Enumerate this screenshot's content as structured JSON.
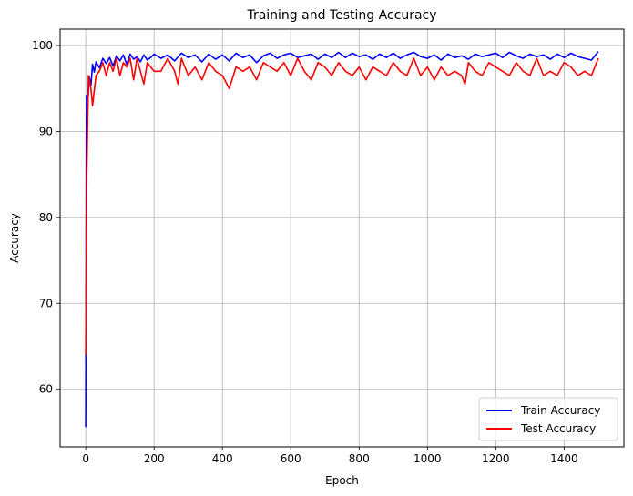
{
  "chart_data": {
    "type": "line",
    "title": "Training and Testing Accuracy",
    "xlabel": "Epoch",
    "ylabel": "Accuracy",
    "xlim": [
      -75,
      1575
    ],
    "ylim": [
      53.3,
      101.9
    ],
    "xticks": [
      0,
      200,
      400,
      600,
      800,
      1000,
      1200,
      1400
    ],
    "yticks": [
      60,
      70,
      80,
      90,
      100
    ],
    "grid": true,
    "legend_position": "lower-right",
    "series": [
      {
        "name": "Train Accuracy",
        "color": "#0000ff",
        "x": [
          0,
          2,
          5,
          10,
          15,
          20,
          25,
          30,
          40,
          50,
          60,
          70,
          80,
          90,
          100,
          110,
          120,
          130,
          140,
          150,
          160,
          170,
          180,
          190,
          200,
          220,
          240,
          260,
          280,
          300,
          320,
          340,
          360,
          380,
          400,
          420,
          440,
          460,
          480,
          500,
          520,
          540,
          560,
          580,
          600,
          620,
          640,
          660,
          680,
          700,
          720,
          740,
          760,
          780,
          800,
          820,
          840,
          860,
          880,
          900,
          920,
          940,
          960,
          980,
          1000,
          1020,
          1040,
          1060,
          1080,
          1100,
          1120,
          1140,
          1160,
          1180,
          1200,
          1220,
          1240,
          1260,
          1280,
          1300,
          1320,
          1340,
          1360,
          1380,
          1400,
          1420,
          1440,
          1460,
          1480,
          1500
        ],
        "y": [
          55.6,
          94.2,
          92.1,
          96.4,
          95.3,
          97.8,
          96.9,
          98.1,
          97.4,
          98.5,
          97.9,
          98.6,
          97.6,
          98.8,
          98.2,
          98.9,
          97.8,
          99.0,
          98.4,
          98.7,
          98.1,
          98.9,
          98.3,
          98.6,
          99.0,
          98.5,
          98.9,
          98.2,
          99.1,
          98.6,
          98.9,
          98.1,
          99.0,
          98.4,
          98.9,
          98.2,
          99.1,
          98.6,
          98.9,
          98.0,
          98.8,
          99.1,
          98.5,
          98.9,
          99.1,
          98.6,
          98.8,
          99.0,
          98.4,
          99.0,
          98.6,
          99.2,
          98.6,
          99.1,
          98.7,
          98.9,
          98.4,
          99.0,
          98.6,
          99.1,
          98.5,
          98.9,
          99.2,
          98.7,
          98.5,
          98.9,
          98.3,
          99.0,
          98.6,
          98.8,
          98.4,
          99.0,
          98.7,
          98.9,
          99.1,
          98.6,
          99.2,
          98.8,
          98.5,
          99.0,
          98.7,
          98.9,
          98.4,
          99.0,
          98.6,
          99.1,
          98.7,
          98.5,
          98.3,
          99.3
        ]
      },
      {
        "name": "Test Accuracy",
        "color": "#ff0000",
        "x": [
          0,
          3,
          8,
          15,
          20,
          30,
          40,
          50,
          60,
          70,
          80,
          90,
          100,
          110,
          120,
          130,
          140,
          150,
          160,
          170,
          180,
          190,
          200,
          220,
          240,
          260,
          270,
          280,
          300,
          320,
          340,
          360,
          380,
          400,
          420,
          440,
          460,
          480,
          500,
          520,
          540,
          560,
          580,
          600,
          620,
          640,
          660,
          680,
          700,
          720,
          740,
          760,
          780,
          800,
          820,
          840,
          860,
          880,
          900,
          920,
          940,
          960,
          980,
          1000,
          1020,
          1040,
          1060,
          1080,
          1100,
          1110,
          1120,
          1140,
          1160,
          1180,
          1200,
          1220,
          1240,
          1260,
          1280,
          1300,
          1320,
          1340,
          1360,
          1380,
          1400,
          1420,
          1440,
          1460,
          1480,
          1500
        ],
        "y": [
          64.0,
          85.0,
          96.5,
          95.0,
          93.0,
          96.5,
          97.0,
          98.0,
          96.5,
          98.0,
          97.0,
          98.5,
          96.5,
          98.0,
          97.5,
          98.5,
          96.0,
          98.5,
          97.0,
          95.5,
          98.0,
          97.5,
          97.0,
          97.0,
          98.5,
          97.0,
          95.5,
          98.5,
          96.5,
          97.5,
          96.0,
          98.0,
          97.0,
          96.5,
          95.0,
          97.5,
          97.0,
          97.5,
          96.0,
          98.0,
          97.5,
          97.0,
          98.0,
          96.5,
          98.5,
          97.0,
          96.0,
          98.0,
          97.5,
          96.5,
          98.0,
          97.0,
          96.5,
          97.5,
          96.0,
          97.5,
          97.0,
          96.5,
          98.0,
          97.0,
          96.5,
          98.5,
          96.5,
          97.5,
          96.0,
          97.5,
          96.5,
          97.0,
          96.5,
          95.5,
          98.0,
          97.0,
          96.5,
          98.0,
          97.5,
          97.0,
          96.5,
          98.0,
          97.0,
          96.5,
          98.5,
          96.5,
          97.0,
          96.5,
          98.0,
          97.5,
          96.5,
          97.0,
          96.5,
          98.5
        ]
      }
    ]
  }
}
